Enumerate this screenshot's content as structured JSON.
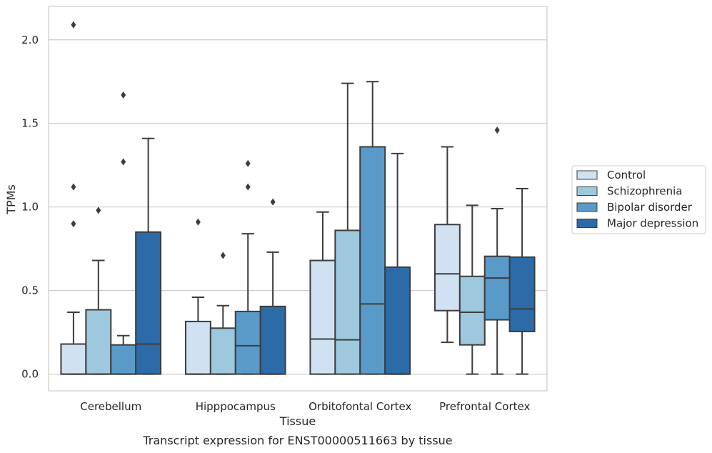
{
  "chart_data": {
    "type": "box",
    "title": "",
    "caption": "Transcript expression for ENST00000511663 by tissue",
    "xlabel": "Tissue",
    "ylabel": "TPMs",
    "ylim": [
      -0.1,
      2.2
    ],
    "yticks": [
      "0.0",
      "0.5",
      "1.0",
      "1.5",
      "2.0"
    ],
    "grid": true,
    "legend_position": "right",
    "categories": [
      "Cerebellum",
      "Hipppocampus",
      "Orbitofontal Cortex",
      "Prefrontal Cortex"
    ],
    "series": [
      {
        "name": "Control",
        "color": "#d0e1f2",
        "boxes": [
          {
            "whisker_low": 0.0,
            "q1": 0.0,
            "median": 0.0,
            "q3": 0.18,
            "whisker_high": 0.37,
            "outliers": [
              0.9,
              1.12,
              2.09
            ]
          },
          {
            "whisker_low": 0.0,
            "q1": 0.0,
            "median": 0.0,
            "q3": 0.315,
            "whisker_high": 0.46,
            "outliers": [
              0.91
            ]
          },
          {
            "whisker_low": 0.0,
            "q1": 0.0,
            "median": 0.21,
            "q3": 0.68,
            "whisker_high": 0.97,
            "outliers": []
          },
          {
            "whisker_low": 0.19,
            "q1": 0.38,
            "median": 0.6,
            "q3": 0.895,
            "whisker_high": 1.36,
            "outliers": []
          }
        ]
      },
      {
        "name": "Schizophrenia",
        "color": "#9dc8de",
        "boxes": [
          {
            "whisker_low": 0.0,
            "q1": 0.0,
            "median": 0.0,
            "q3": 0.385,
            "whisker_high": 0.68,
            "outliers": [
              0.98
            ]
          },
          {
            "whisker_low": 0.0,
            "q1": 0.0,
            "median": 0.0,
            "q3": 0.275,
            "whisker_high": 0.41,
            "outliers": [
              0.71
            ]
          },
          {
            "whisker_low": 0.0,
            "q1": 0.0,
            "median": 0.205,
            "q3": 0.86,
            "whisker_high": 1.74,
            "outliers": []
          },
          {
            "whisker_low": 0.0,
            "q1": 0.175,
            "median": 0.37,
            "q3": 0.585,
            "whisker_high": 1.01,
            "outliers": []
          }
        ]
      },
      {
        "name": "Bipolar disorder",
        "color": "#5a9ac9",
        "boxes": [
          {
            "whisker_low": 0.0,
            "q1": 0.0,
            "median": 0.0,
            "q3": 0.175,
            "whisker_high": 0.23,
            "outliers": [
              1.27,
              1.67
            ]
          },
          {
            "whisker_low": 0.0,
            "q1": 0.0,
            "median": 0.17,
            "q3": 0.375,
            "whisker_high": 0.84,
            "outliers": [
              1.12,
              1.26
            ]
          },
          {
            "whisker_low": 0.0,
            "q1": 0.0,
            "median": 0.42,
            "q3": 1.36,
            "whisker_high": 1.75,
            "outliers": []
          },
          {
            "whisker_low": 0.0,
            "q1": 0.325,
            "median": 0.575,
            "q3": 0.705,
            "whisker_high": 0.99,
            "outliers": [
              1.46
            ]
          }
        ]
      },
      {
        "name": "Major depression",
        "color": "#2c6ba8",
        "boxes": [
          {
            "whisker_low": 0.0,
            "q1": 0.0,
            "median": 0.18,
            "q3": 0.85,
            "whisker_high": 1.41,
            "outliers": []
          },
          {
            "whisker_low": 0.0,
            "q1": 0.0,
            "median": 0.0,
            "q3": 0.405,
            "whisker_high": 0.73,
            "outliers": [
              1.03
            ]
          },
          {
            "whisker_low": 0.0,
            "q1": 0.0,
            "median": 0.0,
            "q3": 0.64,
            "whisker_high": 1.32,
            "outliers": []
          },
          {
            "whisker_low": 0.0,
            "q1": 0.255,
            "median": 0.39,
            "q3": 0.7,
            "whisker_high": 1.11,
            "outliers": []
          }
        ]
      }
    ]
  }
}
